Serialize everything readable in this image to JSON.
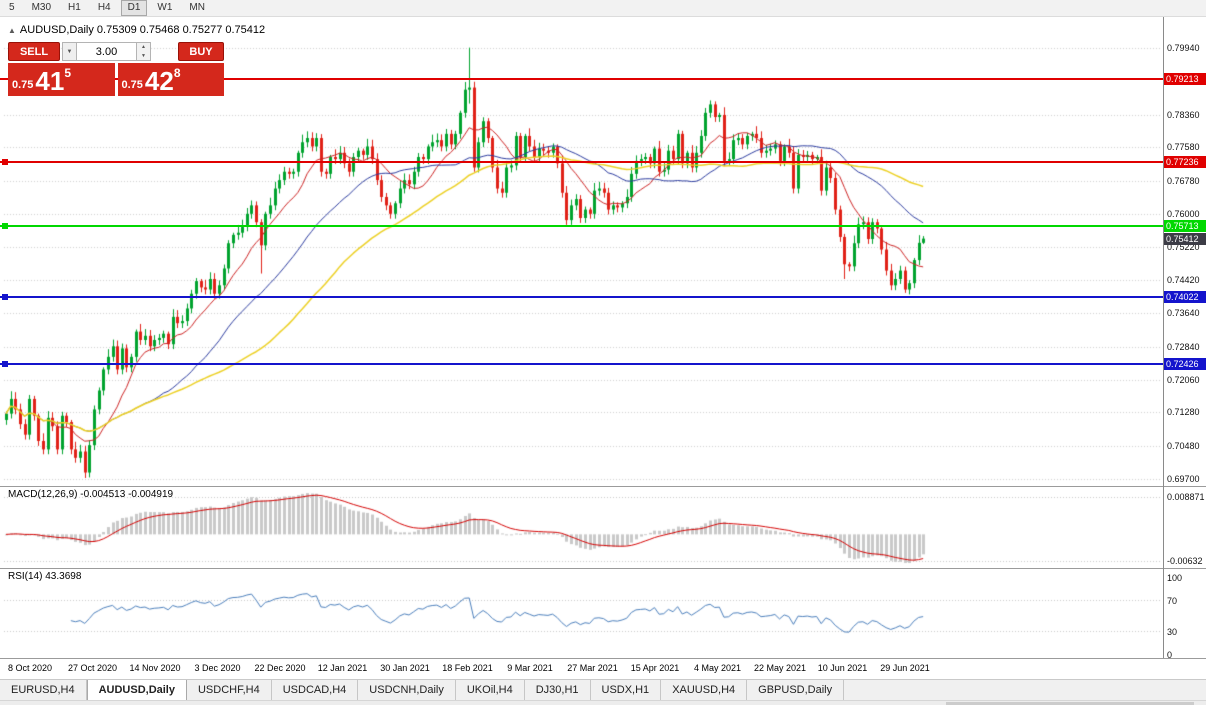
{
  "toolbar": {
    "periods": [
      {
        "label": "5",
        "active": false
      },
      {
        "label": "M30",
        "active": false
      },
      {
        "label": "H1",
        "active": false
      },
      {
        "label": "H4",
        "active": false
      },
      {
        "label": "D1",
        "active": true
      },
      {
        "label": "W1",
        "active": false
      },
      {
        "label": "MN",
        "active": false
      }
    ]
  },
  "chart_header": {
    "text": "AUDUSD,Daily  0.75309 0.75468 0.75277 0.75412"
  },
  "trade_panel": {
    "sell_label": "SELL",
    "buy_label": "BUY",
    "volume": "3.00",
    "sell_price": {
      "prefix": "0.75",
      "big": "41",
      "sup": "5"
    },
    "buy_price": {
      "prefix": "0.75",
      "big": "42",
      "sup": "8"
    },
    "button_color": "#d4281c"
  },
  "price_axis": {
    "labels": [
      "0.79940",
      "0.78360",
      "0.77580",
      "0.76780",
      "0.76000",
      "0.75220",
      "0.74420",
      "0.73640",
      "0.72840",
      "0.72060",
      "0.71280",
      "0.70480",
      "0.69700"
    ]
  },
  "hlines": [
    {
      "price": "0.79213",
      "color": "#e00000",
      "marker": false
    },
    {
      "price": "0.77236",
      "color": "#e00000",
      "marker": true
    },
    {
      "price": "0.75713",
      "color": "#00d800",
      "marker": true
    },
    {
      "price": "0.74022",
      "color": "#1414cc",
      "marker": true
    },
    {
      "price": "0.72426",
      "color": "#1414cc",
      "marker": true
    }
  ],
  "current_price": {
    "price": "0.75412",
    "bg": "#3c3c46"
  },
  "macd": {
    "title": "MACD(12,26,9) -0.004513 -0.004919",
    "fast": 12,
    "slow": 26,
    "signal": 9,
    "axis_max": "0.008871",
    "axis_min": "-0.00632",
    "histogram_color": "#c9c9c9",
    "signal_color": "#d40000"
  },
  "rsi": {
    "title": "RSI(14) 43.3698",
    "period": 14,
    "levels": [
      "100",
      "70",
      "30",
      "0"
    ],
    "dashed_levels": [
      70,
      30
    ],
    "color": "#4a7ebb"
  },
  "date_axis": [
    "8 Oct 2020",
    "27 Oct 2020",
    "14 Nov 2020",
    "3 Dec 2020",
    "22 Dec 2020",
    "12 Jan 2021",
    "30 Jan 2021",
    "18 Feb 2021",
    "9 Mar 2021",
    "27 Mar 2021",
    "15 Apr 2021",
    "4 May 2021",
    "22 May 2021",
    "10 Jun 2021",
    "29 Jun 2021"
  ],
  "tabs": [
    {
      "label": "EURUSD,H4",
      "active": false
    },
    {
      "label": "AUDUSD,Daily",
      "active": true
    },
    {
      "label": "USDCHF,H4",
      "active": false
    },
    {
      "label": "USDCAD,H4",
      "active": false
    },
    {
      "label": "USDCNH,Daily",
      "active": false
    },
    {
      "label": "UKOil,H4",
      "active": false
    },
    {
      "label": "DJ30,H1",
      "active": false
    },
    {
      "label": "USDX,H1",
      "active": false
    },
    {
      "label": "XAUUSD,H4",
      "active": false
    },
    {
      "label": "GBPUSD,Daily",
      "active": false
    }
  ],
  "chart_data": {
    "type": "candlestick",
    "symbol": "AUDUSD",
    "timeframe": "Daily",
    "ohlc": {
      "open": 0.75309,
      "high": 0.75468,
      "low": 0.75277,
      "close": 0.75412
    },
    "price_range": {
      "top": 0.8063,
      "bottom": 0.6953
    },
    "up_color": "#00a32e",
    "down_color": "#e02117",
    "moving_averages": [
      {
        "period": 10,
        "color": "#cc2222"
      },
      {
        "period": 30,
        "color": "#2a3a9e"
      },
      {
        "period": 55,
        "color": "#ecd024"
      }
    ],
    "closes": [
      0.7125,
      0.716,
      0.7135,
      0.71,
      0.7075,
      0.716,
      0.712,
      0.706,
      0.704,
      0.7115,
      0.7095,
      0.704,
      0.712,
      0.7105,
      0.704,
      0.702,
      0.7035,
      0.6985,
      0.705,
      0.7135,
      0.718,
      0.723,
      0.726,
      0.7285,
      0.723,
      0.728,
      0.7235,
      0.726,
      0.732,
      0.73,
      0.731,
      0.7285,
      0.73,
      0.7305,
      0.7315,
      0.729,
      0.7355,
      0.734,
      0.7345,
      0.7375,
      0.741,
      0.744,
      0.7425,
      0.742,
      0.7445,
      0.741,
      0.743,
      0.747,
      0.753,
      0.755,
      0.7555,
      0.757,
      0.76,
      0.762,
      0.758,
      0.7525,
      0.76,
      0.762,
      0.766,
      0.768,
      0.77,
      0.7695,
      0.77,
      0.7745,
      0.777,
      0.778,
      0.776,
      0.778,
      0.77,
      0.7695,
      0.7735,
      0.773,
      0.7745,
      0.772,
      0.77,
      0.7735,
      0.775,
      0.774,
      0.776,
      0.773,
      0.768,
      0.764,
      0.762,
      0.76,
      0.7625,
      0.766,
      0.768,
      0.767,
      0.77,
      0.7735,
      0.773,
      0.776,
      0.777,
      0.7775,
      0.776,
      0.779,
      0.7765,
      0.779,
      0.784,
      0.7895,
      0.79,
      0.771,
      0.777,
      0.782,
      0.778,
      0.771,
      0.766,
      0.765,
      0.771,
      0.7715,
      0.7785,
      0.7735,
      0.7785,
      0.776,
      0.7735,
      0.7755,
      0.775,
      0.7745,
      0.776,
      0.772,
      0.765,
      0.7585,
      0.762,
      0.7635,
      0.759,
      0.761,
      0.76,
      0.7655,
      0.766,
      0.765,
      0.761,
      0.762,
      0.7615,
      0.7625,
      0.764,
      0.7695,
      0.7725,
      0.773,
      0.7735,
      0.772,
      0.7755,
      0.77,
      0.7705,
      0.775,
      0.773,
      0.779,
      0.772,
      0.7745,
      0.771,
      0.7745,
      0.7785,
      0.784,
      0.786,
      0.783,
      0.7835,
      0.7725,
      0.773,
      0.7775,
      0.778,
      0.7765,
      0.7785,
      0.779,
      0.778,
      0.7745,
      0.775,
      0.7755,
      0.7765,
      0.7725,
      0.776,
      0.7745,
      0.766,
      0.774,
      0.7735,
      0.774,
      0.773,
      0.7735,
      0.7655,
      0.771,
      0.7685,
      0.761,
      0.7545,
      0.748,
      0.7475,
      0.753,
      0.7575,
      0.758,
      0.754,
      0.758,
      0.7565,
      0.7515,
      0.7465,
      0.743,
      0.7445,
      0.7465,
      0.742,
      0.7435,
      0.749,
      0.7531,
      0.7541
    ],
    "wick_overrides": [
      {
        "i": 17,
        "l": 0.6972
      },
      {
        "i": 55,
        "l": 0.7458
      },
      {
        "i": 100,
        "h": 0.7995,
        "l": 0.7862
      },
      {
        "i": 101,
        "l": 0.77
      },
      {
        "i": 181,
        "l": 0.7445
      },
      {
        "i": 194,
        "l": 0.7412
      },
      {
        "i": 198,
        "h": 0.7547,
        "l": 0.7528
      }
    ]
  }
}
